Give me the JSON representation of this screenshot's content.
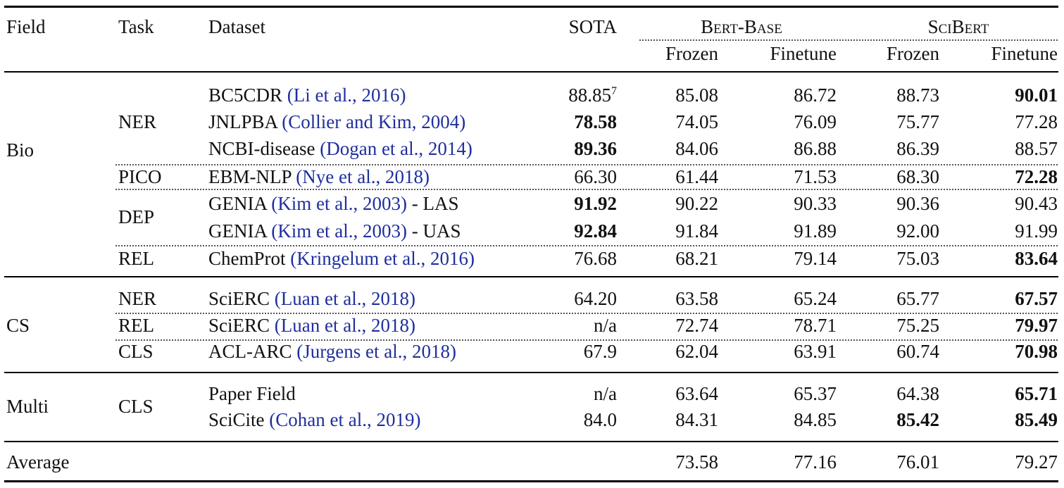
{
  "header": {
    "field": "Field",
    "task": "Task",
    "dataset": "Dataset",
    "sota": "SOTA",
    "bert_base": "Bert-Base",
    "scibert": "SciBert",
    "frozen": "Frozen",
    "finetune": "Finetune"
  },
  "fields": {
    "bio": "Bio",
    "cs": "CS",
    "multi": "Multi"
  },
  "tasks": {
    "bio_ner": "NER",
    "bio_pico": "PICO",
    "bio_dep": "DEP",
    "bio_rel": "REL",
    "cs_ner": "NER",
    "cs_rel": "REL",
    "cs_cls": "CLS",
    "multi_cls": "CLS"
  },
  "rows": [
    {
      "dataset": "BC5CDR",
      "cite": "(Li et al., 2016)",
      "suffix": "",
      "sota": "88.85",
      "sota_sup": "7",
      "bb_frozen": "85.08",
      "bb_finetune": "86.72",
      "sb_frozen": "88.73",
      "sb_finetune": "90.01"
    },
    {
      "dataset": "JNLPBA",
      "cite": "(Collier and Kim, 2004)",
      "suffix": "",
      "sota": "78.58",
      "bb_frozen": "74.05",
      "bb_finetune": "76.09",
      "sb_frozen": "75.77",
      "sb_finetune": "77.28"
    },
    {
      "dataset": "NCBI-disease",
      "cite": "(Dogan et al., 2014)",
      "suffix": "",
      "sota": "89.36",
      "bb_frozen": "84.06",
      "bb_finetune": "86.88",
      "sb_frozen": "86.39",
      "sb_finetune": "88.57"
    },
    {
      "dataset": "EBM-NLP",
      "cite": "(Nye et al., 2018)",
      "suffix": "",
      "sota": "66.30",
      "bb_frozen": "61.44",
      "bb_finetune": "71.53",
      "sb_frozen": "68.30",
      "sb_finetune": "72.28"
    },
    {
      "dataset": "GENIA",
      "cite": "(Kim et al., 2003)",
      "suffix": "- LAS",
      "sota": "91.92",
      "bb_frozen": "90.22",
      "bb_finetune": "90.33",
      "sb_frozen": "90.36",
      "sb_finetune": "90.43"
    },
    {
      "dataset": "GENIA",
      "cite": "(Kim et al., 2003)",
      "suffix": "- UAS",
      "sota": "92.84",
      "bb_frozen": "91.84",
      "bb_finetune": "91.89",
      "sb_frozen": "92.00",
      "sb_finetune": "91.99"
    },
    {
      "dataset": "ChemProt",
      "cite": "(Kringelum et al., 2016)",
      "suffix": "",
      "sota": "76.68",
      "bb_frozen": "68.21",
      "bb_finetune": "79.14",
      "sb_frozen": "75.03",
      "sb_finetune": "83.64"
    },
    {
      "dataset": "SciERC",
      "cite": "(Luan et al., 2018)",
      "suffix": "",
      "sota": "64.20",
      "bb_frozen": "63.58",
      "bb_finetune": "65.24",
      "sb_frozen": "65.77",
      "sb_finetune": "67.57"
    },
    {
      "dataset": "SciERC",
      "cite": "(Luan et al., 2018)",
      "suffix": "",
      "sota": "n/a",
      "bb_frozen": "72.74",
      "bb_finetune": "78.71",
      "sb_frozen": "75.25",
      "sb_finetune": "79.97"
    },
    {
      "dataset": "ACL-ARC",
      "cite": "(Jurgens et al., 2018)",
      "suffix": "",
      "sota": "67.9",
      "bb_frozen": "62.04",
      "bb_finetune": "63.91",
      "sb_frozen": "60.74",
      "sb_finetune": "70.98"
    },
    {
      "dataset": "Paper Field",
      "cite": "",
      "suffix": "",
      "sota": "n/a",
      "bb_frozen": "63.64",
      "bb_finetune": "65.37",
      "sb_frozen": "64.38",
      "sb_finetune": "65.71"
    },
    {
      "dataset": "SciCite",
      "cite": "(Cohan et al., 2019)",
      "suffix": "",
      "sota": "84.0",
      "bb_frozen": "84.31",
      "bb_finetune": "84.85",
      "sb_frozen": "85.42",
      "sb_finetune": "85.49"
    }
  ],
  "average": {
    "label": "Average",
    "bb_frozen": "73.58",
    "bb_finetune": "77.16",
    "sb_frozen": "76.01",
    "sb_finetune": "79.27"
  }
}
